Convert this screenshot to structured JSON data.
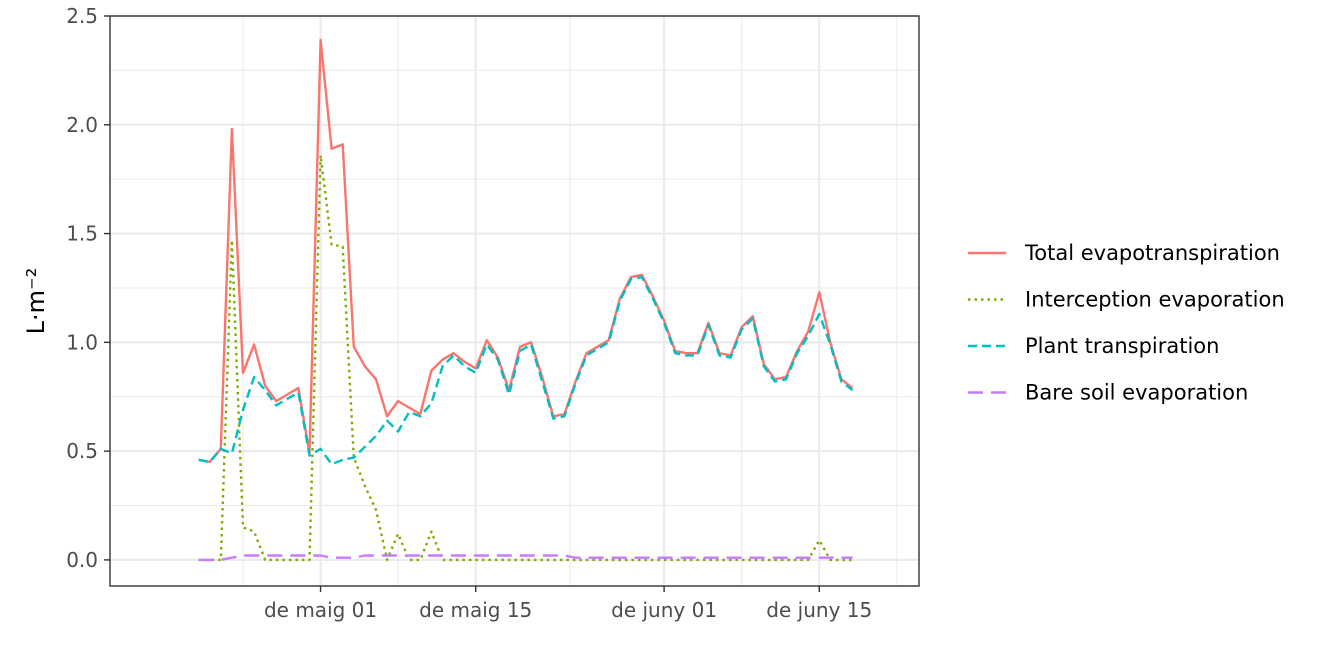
{
  "chart_data": {
    "type": "line",
    "title": "",
    "xlabel": "",
    "ylabel": "L·m⁻²",
    "x_start": "2023-04-20",
    "x": [
      "2023-04-20",
      "2023-04-21",
      "2023-04-22",
      "2023-04-23",
      "2023-04-24",
      "2023-04-25",
      "2023-04-26",
      "2023-04-27",
      "2023-04-28",
      "2023-04-29",
      "2023-04-30",
      "2023-05-01",
      "2023-05-02",
      "2023-05-03",
      "2023-05-04",
      "2023-05-05",
      "2023-05-06",
      "2023-05-07",
      "2023-05-08",
      "2023-05-09",
      "2023-05-10",
      "2023-05-11",
      "2023-05-12",
      "2023-05-13",
      "2023-05-14",
      "2023-05-15",
      "2023-05-16",
      "2023-05-17",
      "2023-05-18",
      "2023-05-19",
      "2023-05-20",
      "2023-05-21",
      "2023-05-22",
      "2023-05-23",
      "2023-05-24",
      "2023-05-25",
      "2023-05-26",
      "2023-05-27",
      "2023-05-28",
      "2023-05-29",
      "2023-05-30",
      "2023-05-31",
      "2023-06-01",
      "2023-06-02",
      "2023-06-03",
      "2023-06-04",
      "2023-06-05",
      "2023-06-06",
      "2023-06-07",
      "2023-06-08",
      "2023-06-09",
      "2023-06-10",
      "2023-06-11",
      "2023-06-12",
      "2023-06-13",
      "2023-06-14",
      "2023-06-15",
      "2023-06-16",
      "2023-06-17",
      "2023-06-18"
    ],
    "xlim": [
      "2023-04-12",
      "2023-06-24"
    ],
    "ylim": [
      -0.12,
      2.5
    ],
    "x_ticks": [
      {
        "date": "2023-05-01",
        "label": "de maig 01"
      },
      {
        "date": "2023-05-15",
        "label": "de maig 15"
      },
      {
        "date": "2023-06-01",
        "label": "de juny 01"
      },
      {
        "date": "2023-06-15",
        "label": "de juny 15"
      }
    ],
    "y_ticks": [
      {
        "value": 0.0,
        "label": "0.0"
      },
      {
        "value": 0.5,
        "label": "0.5"
      },
      {
        "value": 1.0,
        "label": "1.0"
      },
      {
        "value": 1.5,
        "label": "1.5"
      },
      {
        "value": 2.0,
        "label": "2.0"
      },
      {
        "value": 2.5,
        "label": "2.5"
      }
    ],
    "grid": true,
    "legend_position": "right",
    "series": [
      {
        "name": "Total evapotranspiration",
        "color": "#F8766D",
        "dash": "solid",
        "values": [
          0.46,
          0.45,
          0.51,
          1.98,
          0.86,
          0.99,
          0.8,
          0.73,
          0.76,
          0.79,
          0.49,
          2.39,
          1.89,
          1.91,
          0.98,
          0.89,
          0.83,
          0.66,
          0.73,
          0.7,
          0.67,
          0.87,
          0.92,
          0.95,
          0.91,
          0.88,
          1.01,
          0.93,
          0.78,
          0.98,
          1.0,
          0.84,
          0.66,
          0.67,
          0.82,
          0.95,
          0.98,
          1.01,
          1.2,
          1.3,
          1.31,
          1.21,
          1.1,
          0.96,
          0.95,
          0.95,
          1.09,
          0.95,
          0.94,
          1.07,
          1.12,
          0.9,
          0.83,
          0.84,
          0.96,
          1.05,
          1.23,
          1.0,
          0.83,
          0.79
        ]
      },
      {
        "name": "Interception evaporation",
        "color": "#7CAE00",
        "dash": "dotted",
        "values": [
          0.0,
          0.0,
          0.0,
          1.47,
          0.15,
          0.13,
          0.0,
          0.0,
          0.0,
          0.0,
          0.0,
          1.86,
          1.45,
          1.44,
          0.47,
          0.34,
          0.23,
          0.0,
          0.12,
          0.0,
          0.0,
          0.13,
          0.0,
          0.0,
          0.0,
          0.0,
          0.0,
          0.0,
          0.0,
          0.0,
          0.0,
          0.0,
          0.0,
          0.0,
          0.0,
          0.0,
          0.0,
          0.0,
          0.0,
          0.0,
          0.0,
          0.0,
          0.0,
          0.0,
          0.0,
          0.0,
          0.0,
          0.0,
          0.0,
          0.0,
          0.0,
          0.0,
          0.0,
          0.0,
          0.0,
          0.0,
          0.09,
          0.0,
          0.0,
          0.0
        ]
      },
      {
        "name": "Plant transpiration",
        "color": "#00BFC4",
        "dash": "dashed",
        "values": [
          0.46,
          0.45,
          0.51,
          0.49,
          0.69,
          0.84,
          0.78,
          0.71,
          0.74,
          0.77,
          0.48,
          0.51,
          0.44,
          0.46,
          0.47,
          0.52,
          0.57,
          0.64,
          0.59,
          0.68,
          0.66,
          0.72,
          0.89,
          0.94,
          0.89,
          0.86,
          0.99,
          0.92,
          0.76,
          0.96,
          0.99,
          0.82,
          0.65,
          0.66,
          0.81,
          0.94,
          0.97,
          1.0,
          1.19,
          1.29,
          1.3,
          1.2,
          1.09,
          0.95,
          0.94,
          0.94,
          1.08,
          0.94,
          0.93,
          1.06,
          1.11,
          0.89,
          0.82,
          0.83,
          0.95,
          1.03,
          1.13,
          0.99,
          0.82,
          0.78
        ]
      },
      {
        "name": "Bare soil evaporation",
        "color": "#C77CFF",
        "dash": "longdash",
        "values": [
          0.0,
          0.0,
          0.0,
          0.01,
          0.02,
          0.02,
          0.02,
          0.02,
          0.02,
          0.02,
          0.02,
          0.02,
          0.01,
          0.01,
          0.01,
          0.02,
          0.02,
          0.02,
          0.02,
          0.02,
          0.02,
          0.02,
          0.02,
          0.02,
          0.02,
          0.02,
          0.02,
          0.02,
          0.02,
          0.02,
          0.02,
          0.02,
          0.02,
          0.02,
          0.01,
          0.01,
          0.01,
          0.01,
          0.01,
          0.01,
          0.01,
          0.01,
          0.01,
          0.01,
          0.01,
          0.01,
          0.01,
          0.01,
          0.01,
          0.01,
          0.01,
          0.01,
          0.01,
          0.01,
          0.01,
          0.01,
          0.01,
          0.01,
          0.01,
          0.01
        ]
      }
    ]
  }
}
